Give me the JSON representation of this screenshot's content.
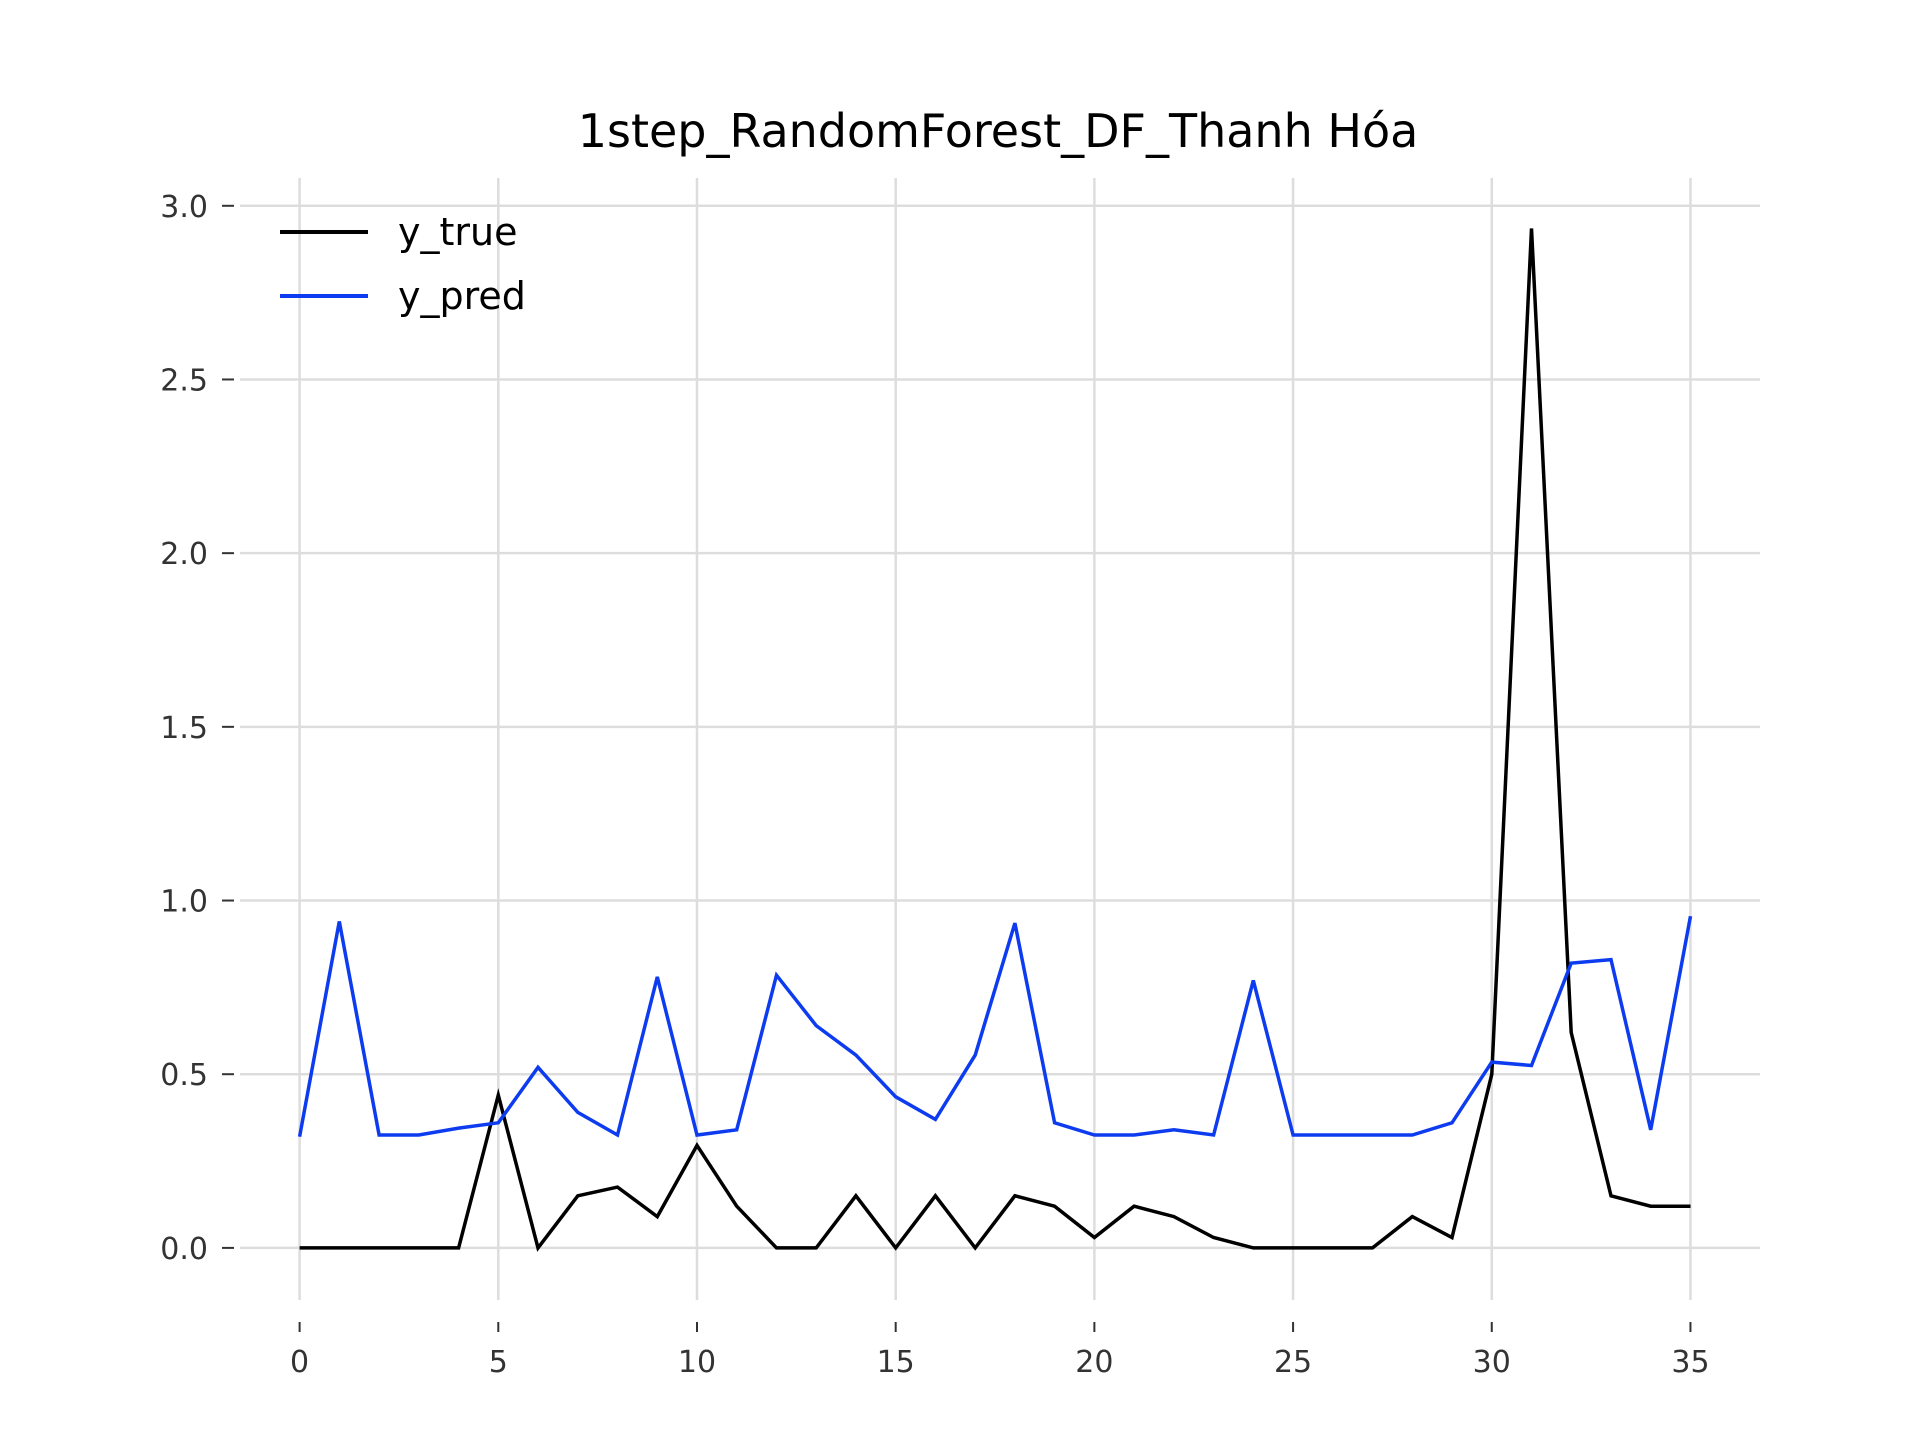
{
  "chart_data": {
    "type": "line",
    "title": "1step_RandomForest_DF_Thanh Hóa",
    "xlabel": "",
    "ylabel": "",
    "xlim": [
      -1.5,
      36.75
    ],
    "ylim": [
      -0.15,
      3.08
    ],
    "x_ticks": [
      0,
      5,
      10,
      15,
      20,
      25,
      30,
      35
    ],
    "y_ticks": [
      0.0,
      0.5,
      1.0,
      1.5,
      2.0,
      2.5,
      3.0
    ],
    "y_tick_labels": [
      "0.0",
      "0.5",
      "1.0",
      "1.5",
      "2.0",
      "2.5",
      "3.0"
    ],
    "grid": true,
    "legend_position": "top-left",
    "x": [
      0,
      1,
      2,
      3,
      4,
      5,
      6,
      7,
      8,
      9,
      10,
      11,
      12,
      13,
      14,
      15,
      16,
      17,
      18,
      19,
      20,
      21,
      22,
      23,
      24,
      25,
      26,
      27,
      28,
      29,
      30,
      31,
      32,
      33,
      34,
      35
    ],
    "series": [
      {
        "name": "y_true",
        "color": "#000000",
        "values": [
          0.0,
          0.0,
          0.0,
          0.0,
          0.0,
          0.44,
          0.0,
          0.15,
          0.175,
          0.09,
          0.295,
          0.12,
          0.0,
          0.0,
          0.15,
          0.0,
          0.15,
          0.0,
          0.15,
          0.12,
          0.03,
          0.12,
          0.09,
          0.03,
          0.0,
          0.0,
          0.0,
          0.0,
          0.09,
          0.03,
          0.5,
          2.935,
          0.62,
          0.15,
          0.12,
          0.12
        ]
      },
      {
        "name": "y_pred",
        "color": "#0d3cf0",
        "values": [
          0.32,
          0.94,
          0.325,
          0.325,
          0.345,
          0.36,
          0.52,
          0.39,
          0.325,
          0.78,
          0.325,
          0.34,
          0.785,
          0.64,
          0.555,
          0.435,
          0.37,
          0.555,
          0.935,
          0.36,
          0.325,
          0.325,
          0.34,
          0.325,
          0.77,
          0.325,
          0.325,
          0.325,
          0.325,
          0.36,
          0.535,
          0.525,
          0.82,
          0.83,
          0.34,
          0.955
        ]
      }
    ]
  }
}
